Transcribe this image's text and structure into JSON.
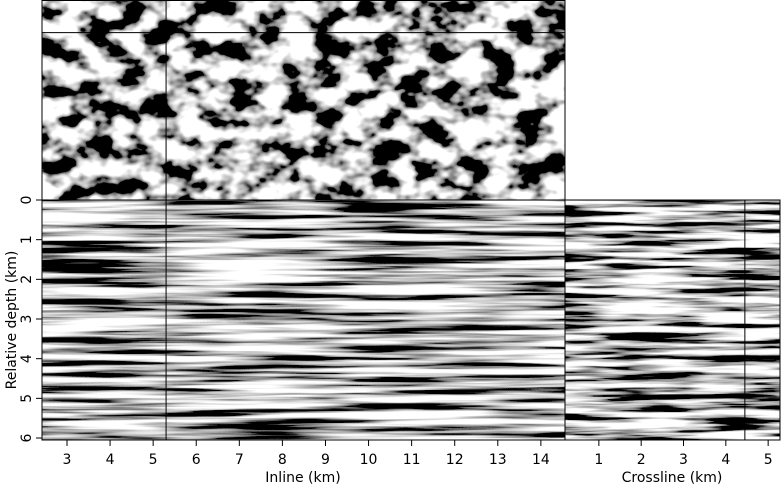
{
  "chart_data": {
    "type": "seismic",
    "ylabel": "Relative depth (km)",
    "ylim": [
      0,
      6.05
    ],
    "yticks": [
      0,
      1,
      2,
      3,
      4,
      5,
      6
    ],
    "inline": {
      "xlabel": "Inline (km)",
      "xlim": [
        2.42,
        14.56
      ],
      "xticks": [
        3,
        4,
        5,
        6,
        7,
        8,
        9,
        10,
        11,
        12,
        13,
        14
      ],
      "cursor": 5.3
    },
    "crossline": {
      "xlabel": "Crossline (km)",
      "xlim": [
        0.2,
        5.28
      ],
      "xticks": [
        1,
        2,
        3,
        4,
        5
      ],
      "cursor": 4.45
    }
  }
}
